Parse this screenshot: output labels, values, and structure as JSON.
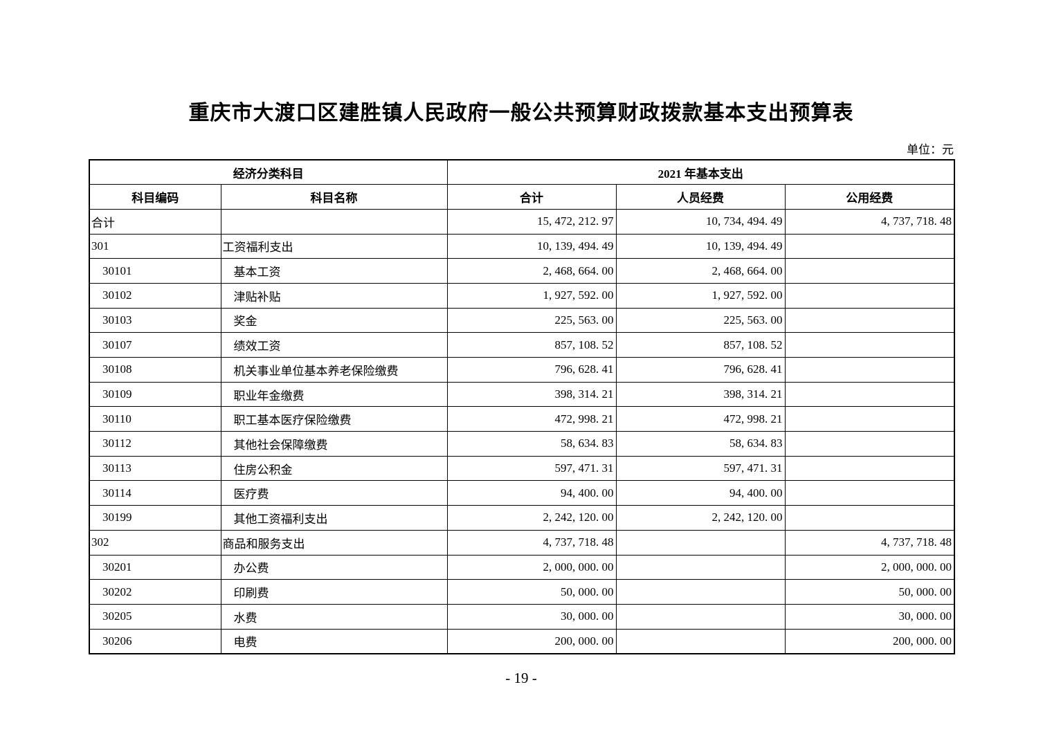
{
  "page": {
    "title": "重庆市大渡口区建胜镇人民政府一般公共预算财政拨款基本支出预算表",
    "unit_label": "单位：元",
    "page_number": "- 19 -"
  },
  "table": {
    "header": {
      "group_left": "经济分类科目",
      "group_right": "2021 年基本支出",
      "columns": [
        "科目编码",
        "科目名称",
        "合计",
        "人员经费",
        "公用经费"
      ]
    },
    "rows": [
      {
        "code": "合计",
        "name": "",
        "total": "15, 472, 212. 97",
        "personnel": "10, 734, 494. 49",
        "public": "4, 737, 718. 48",
        "level": 0
      },
      {
        "code": "301",
        "name": "工资福利支出",
        "total": "10, 139, 494. 49",
        "personnel": "10, 139, 494. 49",
        "public": "",
        "level": 0
      },
      {
        "code": "30101",
        "name": "基本工资",
        "total": "2, 468, 664. 00",
        "personnel": "2, 468, 664. 00",
        "public": "",
        "level": 1
      },
      {
        "code": "30102",
        "name": "津贴补贴",
        "total": "1, 927, 592. 00",
        "personnel": "1, 927, 592. 00",
        "public": "",
        "level": 1
      },
      {
        "code": "30103",
        "name": "奖金",
        "total": "225, 563. 00",
        "personnel": "225, 563. 00",
        "public": "",
        "level": 1
      },
      {
        "code": "30107",
        "name": "绩效工资",
        "total": "857, 108. 52",
        "personnel": "857, 108. 52",
        "public": "",
        "level": 1
      },
      {
        "code": "30108",
        "name": "机关事业单位基本养老保险缴费",
        "total": "796, 628. 41",
        "personnel": "796, 628. 41",
        "public": "",
        "level": 1
      },
      {
        "code": "30109",
        "name": "职业年金缴费",
        "total": "398, 314. 21",
        "personnel": "398, 314. 21",
        "public": "",
        "level": 1
      },
      {
        "code": "30110",
        "name": "职工基本医疗保险缴费",
        "total": "472, 998. 21",
        "personnel": "472, 998. 21",
        "public": "",
        "level": 1
      },
      {
        "code": "30112",
        "name": "其他社会保障缴费",
        "total": "58, 634. 83",
        "personnel": "58, 634. 83",
        "public": "",
        "level": 1
      },
      {
        "code": "30113",
        "name": "住房公积金",
        "total": "597, 471. 31",
        "personnel": "597, 471. 31",
        "public": "",
        "level": 1
      },
      {
        "code": "30114",
        "name": "医疗费",
        "total": "94, 400. 00",
        "personnel": "94, 400. 00",
        "public": "",
        "level": 1
      },
      {
        "code": "30199",
        "name": "其他工资福利支出",
        "total": "2, 242, 120. 00",
        "personnel": "2, 242, 120. 00",
        "public": "",
        "level": 1
      },
      {
        "code": "302",
        "name": "商品和服务支出",
        "total": "4, 737, 718. 48",
        "personnel": "",
        "public": "4, 737, 718. 48",
        "level": 0
      },
      {
        "code": "30201",
        "name": "办公费",
        "total": "2, 000, 000. 00",
        "personnel": "",
        "public": "2, 000, 000. 00",
        "level": 1
      },
      {
        "code": "30202",
        "name": "印刷费",
        "total": "50, 000. 00",
        "personnel": "",
        "public": "50, 000. 00",
        "level": 1
      },
      {
        "code": "30205",
        "name": "水费",
        "total": "30, 000. 00",
        "personnel": "",
        "public": "30, 000. 00",
        "level": 1
      },
      {
        "code": "30206",
        "name": "电费",
        "total": "200, 000. 00",
        "personnel": "",
        "public": "200, 000. 00",
        "level": 1
      }
    ]
  }
}
